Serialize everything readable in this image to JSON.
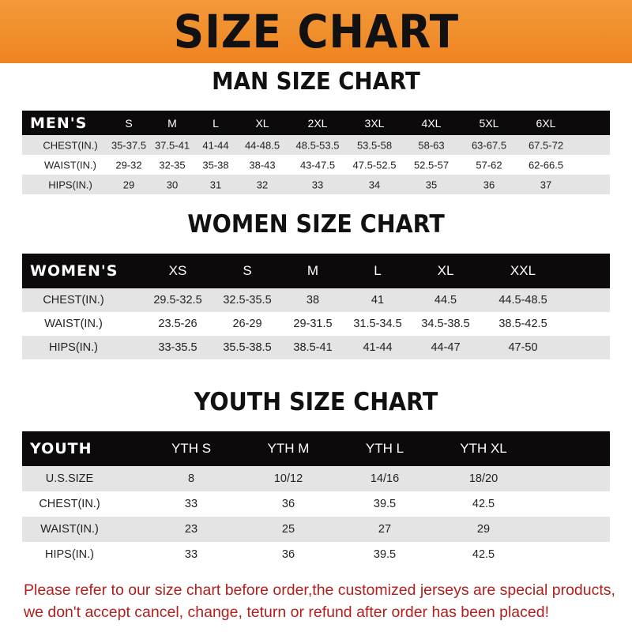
{
  "banner": {
    "title": "SIZE CHART",
    "color": "#f08a24"
  },
  "men": {
    "title": "MAN SIZE CHART",
    "header_label": "MEN'S",
    "sizes": [
      "S",
      "M",
      "L",
      "XL",
      "2XL",
      "3XL",
      "4XL",
      "5XL",
      "6XL"
    ],
    "rows": [
      {
        "label": "CHEST(IN.)",
        "values": [
          "35-37.5",
          "37.5-41",
          "41-44",
          "44-48.5",
          "48.5-53.5",
          "53.5-58",
          "58-63",
          "63-67.5",
          "67.5-72"
        ]
      },
      {
        "label": "WAIST(IN.)",
        "values": [
          "29-32",
          "32-35",
          "35-38",
          "38-43",
          "43-47.5",
          "47.5-52.5",
          "52.5-57",
          "57-62",
          "62-66.5"
        ]
      },
      {
        "label": "HIPS(IN.)",
        "values": [
          "29",
          "30",
          "31",
          "32",
          "33",
          "34",
          "35",
          "36",
          "37"
        ]
      }
    ]
  },
  "women": {
    "title": "WOMEN SIZE CHART",
    "header_label": "WOMEN'S",
    "sizes": [
      "XS",
      "S",
      "M",
      "L",
      "XL",
      "XXL"
    ],
    "rows": [
      {
        "label": "CHEST(IN.)",
        "values": [
          "29.5-32.5",
          "32.5-35.5",
          "38",
          "41",
          "44.5",
          "44.5-48.5"
        ]
      },
      {
        "label": "WAIST(IN.)",
        "values": [
          "23.5-26",
          "26-29",
          "29-31.5",
          "31.5-34.5",
          "34.5-38.5",
          "38.5-42.5"
        ]
      },
      {
        "label": "HIPS(IN.)",
        "values": [
          "33-35.5",
          "35.5-38.5",
          "38.5-41",
          "41-44",
          "44-47",
          "47-50"
        ]
      }
    ]
  },
  "youth": {
    "title": "YOUTH SIZE CHART",
    "header_label": "YOUTH",
    "sizes": [
      "YTH S",
      "YTH M",
      "YTH L",
      "YTH XL"
    ],
    "rows": [
      {
        "label": "U.S.SIZE",
        "values": [
          "8",
          "10/12",
          "14/16",
          "18/20"
        ]
      },
      {
        "label": "CHEST(IN.)",
        "values": [
          "33",
          "36",
          "39.5",
          "42.5"
        ]
      },
      {
        "label": "WAIST(IN.)",
        "values": [
          "23",
          "25",
          "27",
          "29"
        ]
      },
      {
        "label": "HIPS(IN.)",
        "values": [
          "33",
          "36",
          "39.5",
          "42.5"
        ]
      }
    ]
  },
  "note": {
    "line1": "Please refer to our size chart before order,the customized jerseys are special products,",
    "line2": "we don't accept cancel, change, teturn or refund after order has been placed!",
    "color": "#b0201e"
  }
}
